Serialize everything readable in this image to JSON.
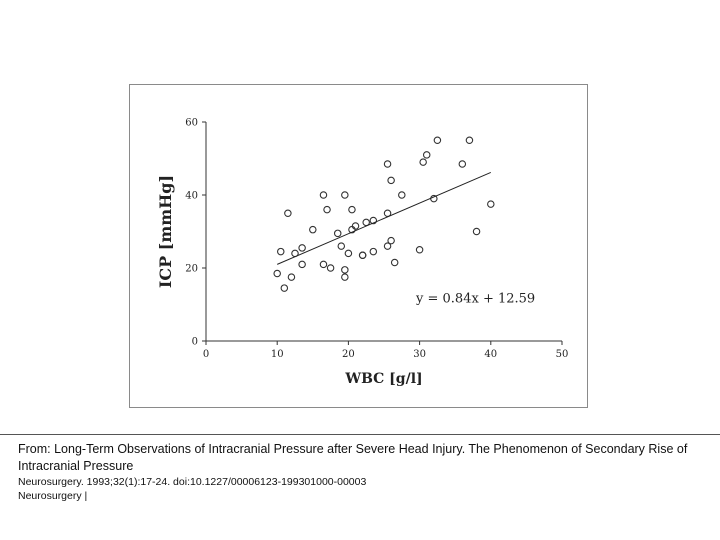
{
  "chart_data": {
    "type": "scatter",
    "xlabel": "WBC [g/l]",
    "ylabel": "ICP [mmHg]",
    "xlim": [
      0,
      50
    ],
    "ylim": [
      0,
      60
    ],
    "xticks": [
      "0",
      "10",
      "20",
      "30",
      "40",
      "50"
    ],
    "yticks": [
      "0",
      "20",
      "40",
      "60"
    ],
    "grid": false,
    "annotation": "y = 0.84x + 12.59",
    "regression": {
      "slope": 0.84,
      "intercept": 12.59,
      "x_range": [
        10,
        40
      ]
    },
    "points": [
      [
        10,
        18.5
      ],
      [
        10.5,
        24.5
      ],
      [
        11,
        14.5
      ],
      [
        11.5,
        35
      ],
      [
        12,
        17.5
      ],
      [
        12.5,
        24
      ],
      [
        13.5,
        21
      ],
      [
        13.5,
        25.5
      ],
      [
        15,
        30.5
      ],
      [
        16.5,
        40
      ],
      [
        16.5,
        21
      ],
      [
        17,
        36
      ],
      [
        17.5,
        20
      ],
      [
        18.5,
        29.5
      ],
      [
        19,
        26
      ],
      [
        19.5,
        19.5
      ],
      [
        19.5,
        40
      ],
      [
        19.5,
        17.5
      ],
      [
        20,
        24
      ],
      [
        20.5,
        36
      ],
      [
        20.5,
        30.5
      ],
      [
        21,
        31.5
      ],
      [
        22,
        23.5
      ],
      [
        22,
        23.5
      ],
      [
        22.5,
        32.5
      ],
      [
        23.5,
        33
      ],
      [
        23.5,
        24.5
      ],
      [
        25.5,
        35
      ],
      [
        25.5,
        26
      ],
      [
        25.5,
        48.5
      ],
      [
        26,
        44
      ],
      [
        26,
        27.5
      ],
      [
        26.5,
        21.5
      ],
      [
        27.5,
        40
      ],
      [
        30,
        25
      ],
      [
        30.5,
        49
      ],
      [
        31,
        51
      ],
      [
        32,
        39
      ],
      [
        32.5,
        55
      ],
      [
        36,
        48.5
      ],
      [
        37,
        55
      ],
      [
        38,
        30
      ],
      [
        40,
        37.5
      ]
    ],
    "colors": {
      "marker": "#333333",
      "axis": "#333333",
      "line": "#222222"
    }
  },
  "caption": {
    "title": "From: Long-Term Observations of Intracranial Pressure after Severe Head Injury. The Phenomenon of Secondary Rise of Intracranial Pressure",
    "citation": "Neurosurgery. 1993;32(1):17-24. doi:10.1227/00006123-199301000-00003",
    "journal": "Neurosurgery |"
  }
}
